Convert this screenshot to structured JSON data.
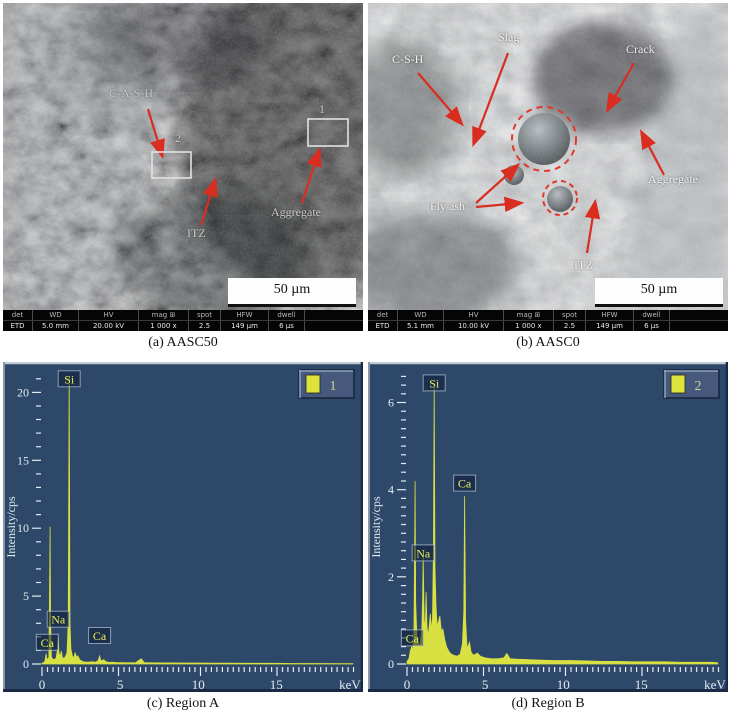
{
  "figure": {
    "captions": {
      "a": "(a) AASC50",
      "b": "(b) AASC0",
      "c": "(c) Region A",
      "d": "(d) Region B"
    }
  },
  "panel_a": {
    "labels": {
      "cash": "C-A-S-H",
      "region2": "2",
      "region1": "1",
      "itz": "ITZ",
      "aggregate": "Aggregate"
    },
    "scale_bar": "50 µm",
    "info": {
      "headers": [
        "det",
        "WD",
        "HV",
        "mag ⊞",
        "spot",
        "HFW",
        "dwell"
      ],
      "values": [
        "ETD",
        "5.0 mm",
        "20.00 kV",
        "1 000 x",
        "2.5",
        "149 µm",
        "6 µs"
      ]
    }
  },
  "panel_b": {
    "labels": {
      "csh": "C-S-H",
      "slag": "Slag",
      "crack": "Crack",
      "flyash": "Fly ash",
      "itz": "ITZ",
      "aggregate": "Aggregate"
    },
    "scale_bar": "50 µm",
    "info": {
      "headers": [
        "det",
        "WD",
        "HV",
        "mag ⊞",
        "spot",
        "HFW",
        "dwell"
      ],
      "values": [
        "ETD",
        "5.1 mm",
        "10.00 kV",
        "1 000 x",
        "2.5",
        "149 µm",
        "6 µs"
      ]
    }
  },
  "annotation_style": {
    "arrow": "#d92d20",
    "box": "#e2e2e2",
    "dashed_circle": "#e0382c",
    "label_a": "#c9c9c9",
    "label_b": "#f1f1f1"
  },
  "chart_style": {
    "background": "#2d4868",
    "tick": "#e4ebf3",
    "spectrum": "#d9e041",
    "element_label_text": "#e6ec58",
    "element_label_border": "#b9c8dd",
    "legend_bg": "#46597c",
    "legend_border_light": "#90a4c2",
    "legend_border_dark": "#16243d",
    "legend_swatch": "#dde23c",
    "legend_text": "#ccd487",
    "bevel_top": "#c2cbd6",
    "bevel_left": "#8a97a8",
    "bevel_dark": "#1a2944"
  },
  "chart_data": [
    {
      "id": "region-a",
      "type": "area",
      "title": "",
      "xlabel": "keV",
      "ylabel": "Intensity/cps",
      "xlim": [
        0,
        20.3
      ],
      "ylim": [
        0,
        21.5
      ],
      "x_major_ticks": [
        0,
        5,
        10,
        15
      ],
      "y_major_ticks": [
        0,
        5,
        10,
        15,
        20
      ],
      "x_minor_step": 0.35,
      "y_minor_step": 1,
      "grid": false,
      "legend": {
        "label": "1",
        "position": "top-right"
      },
      "element_labels": [
        {
          "text": "Ca",
          "x": 0.34,
          "y": 1.6
        },
        {
          "text": "Na",
          "x": 1.04,
          "y": 3.3
        },
        {
          "text": "Si",
          "x": 1.74,
          "y": 21.0
        },
        {
          "text": "Ca",
          "x": 3.69,
          "y": 2.1
        }
      ],
      "points": [
        [
          0,
          0.06
        ],
        [
          0.12,
          0.1
        ],
        [
          0.2,
          0.25
        ],
        [
          0.26,
          0.75
        ],
        [
          0.3,
          0.45
        ],
        [
          0.36,
          0.3
        ],
        [
          0.44,
          0.5
        ],
        [
          0.5,
          7.5
        ],
        [
          0.52,
          10.1
        ],
        [
          0.55,
          3
        ],
        [
          0.6,
          0.5
        ],
        [
          0.7,
          0.35
        ],
        [
          0.8,
          0.32
        ],
        [
          0.9,
          0.45
        ],
        [
          1.0,
          1.1
        ],
        [
          1.04,
          1.9
        ],
        [
          1.09,
          0.8
        ],
        [
          1.16,
          0.55
        ],
        [
          1.24,
          0.95
        ],
        [
          1.3,
          0.5
        ],
        [
          1.4,
          0.4
        ],
        [
          1.5,
          0.55
        ],
        [
          1.6,
          0.8
        ],
        [
          1.68,
          3
        ],
        [
          1.74,
          21.2
        ],
        [
          1.79,
          3
        ],
        [
          1.85,
          1.1
        ],
        [
          1.95,
          0.55
        ],
        [
          2.05,
          0.5
        ],
        [
          2.12,
          0.85
        ],
        [
          2.2,
          0.5
        ],
        [
          2.3,
          0.6
        ],
        [
          2.42,
          0.3
        ],
        [
          2.6,
          0.18
        ],
        [
          2.8,
          0.14
        ],
        [
          3.0,
          0.14
        ],
        [
          3.2,
          0.16
        ],
        [
          3.45,
          0.14
        ],
        [
          3.6,
          0.25
        ],
        [
          3.69,
          0.6
        ],
        [
          3.78,
          0.22
        ],
        [
          3.95,
          0.32
        ],
        [
          4.1,
          0.16
        ],
        [
          4.3,
          0.12
        ],
        [
          4.55,
          0.14
        ],
        [
          4.8,
          0.1
        ],
        [
          5.2,
          0.1
        ],
        [
          5.6,
          0.09
        ],
        [
          6.0,
          0.1
        ],
        [
          6.35,
          0.38
        ],
        [
          6.55,
          0.1
        ],
        [
          7.0,
          0.09
        ],
        [
          7.6,
          0.08
        ],
        [
          8.4,
          0.08
        ],
        [
          9.2,
          0.07
        ],
        [
          10.0,
          0.07
        ],
        [
          11.0,
          0.06
        ],
        [
          12.0,
          0.06
        ],
        [
          13.0,
          0.05
        ],
        [
          14.0,
          0.05
        ],
        [
          15.0,
          0.05
        ],
        [
          16.0,
          0.04
        ],
        [
          17.0,
          0.04
        ],
        [
          18.0,
          0.04
        ],
        [
          19.0,
          0.03
        ],
        [
          19.9,
          0.03
        ]
      ]
    },
    {
      "id": "region-b",
      "type": "area",
      "title": "",
      "xlabel": "keV",
      "ylabel": "Intensity/cps",
      "xlim": [
        0,
        20.3
      ],
      "ylim": [
        0,
        6.7
      ],
      "x_major_ticks": [
        0,
        5,
        10,
        15
      ],
      "y_major_ticks": [
        0,
        2,
        4,
        6
      ],
      "x_minor_step": 0.35,
      "y_minor_step": 0.2,
      "grid": false,
      "legend": {
        "label": "2",
        "position": "top-right"
      },
      "element_labels": [
        {
          "text": "Ca",
          "x": 0.34,
          "y": 0.6
        },
        {
          "text": "Na",
          "x": 1.04,
          "y": 2.55
        },
        {
          "text": "Si",
          "x": 1.74,
          "y": 6.45
        },
        {
          "text": "Ca",
          "x": 3.69,
          "y": 4.15
        }
      ],
      "points": [
        [
          0,
          0.06
        ],
        [
          0.12,
          0.12
        ],
        [
          0.22,
          0.3
        ],
        [
          0.3,
          0.4
        ],
        [
          0.36,
          0.3
        ],
        [
          0.44,
          0.6
        ],
        [
          0.5,
          3.2
        ],
        [
          0.52,
          4.2
        ],
        [
          0.56,
          1.4
        ],
        [
          0.64,
          0.55
        ],
        [
          0.74,
          0.45
        ],
        [
          0.84,
          0.45
        ],
        [
          0.95,
          0.8
        ],
        [
          1.0,
          1.5
        ],
        [
          1.04,
          2.45
        ],
        [
          1.1,
          1.0
        ],
        [
          1.17,
          0.85
        ],
        [
          1.22,
          1.65
        ],
        [
          1.28,
          0.85
        ],
        [
          1.36,
          0.65
        ],
        [
          1.44,
          0.95
        ],
        [
          1.5,
          1.15
        ],
        [
          1.56,
          0.75
        ],
        [
          1.63,
          1.05
        ],
        [
          1.69,
          2.6
        ],
        [
          1.74,
          6.35
        ],
        [
          1.79,
          2.2
        ],
        [
          1.86,
          1.35
        ],
        [
          1.93,
          0.85
        ],
        [
          2.0,
          0.95
        ],
        [
          2.1,
          1.1
        ],
        [
          2.2,
          0.75
        ],
        [
          2.3,
          0.8
        ],
        [
          2.42,
          0.55
        ],
        [
          2.55,
          0.38
        ],
        [
          2.7,
          0.28
        ],
        [
          2.85,
          0.22
        ],
        [
          3.0,
          0.2
        ],
        [
          3.2,
          0.18
        ],
        [
          3.4,
          0.22
        ],
        [
          3.55,
          0.45
        ],
        [
          3.64,
          1.2
        ],
        [
          3.69,
          3.85
        ],
        [
          3.75,
          1.0
        ],
        [
          3.85,
          0.35
        ],
        [
          4.0,
          0.5
        ],
        [
          4.1,
          0.28
        ],
        [
          4.25,
          0.2
        ],
        [
          4.5,
          0.25
        ],
        [
          4.7,
          0.18
        ],
        [
          5.0,
          0.14
        ],
        [
          5.4,
          0.12
        ],
        [
          5.8,
          0.12
        ],
        [
          6.2,
          0.14
        ],
        [
          6.4,
          0.24
        ],
        [
          6.6,
          0.12
        ],
        [
          7.0,
          0.11
        ],
        [
          7.8,
          0.1
        ],
        [
          8.6,
          0.09
        ],
        [
          9.5,
          0.08
        ],
        [
          10.5,
          0.08
        ],
        [
          11.5,
          0.07
        ],
        [
          12.5,
          0.06
        ],
        [
          13.5,
          0.06
        ],
        [
          14.5,
          0.05
        ],
        [
          15.5,
          0.05
        ],
        [
          16.5,
          0.05
        ],
        [
          17.5,
          0.04
        ],
        [
          18.5,
          0.04
        ],
        [
          19.5,
          0.04
        ],
        [
          19.9,
          0.03
        ]
      ]
    }
  ]
}
